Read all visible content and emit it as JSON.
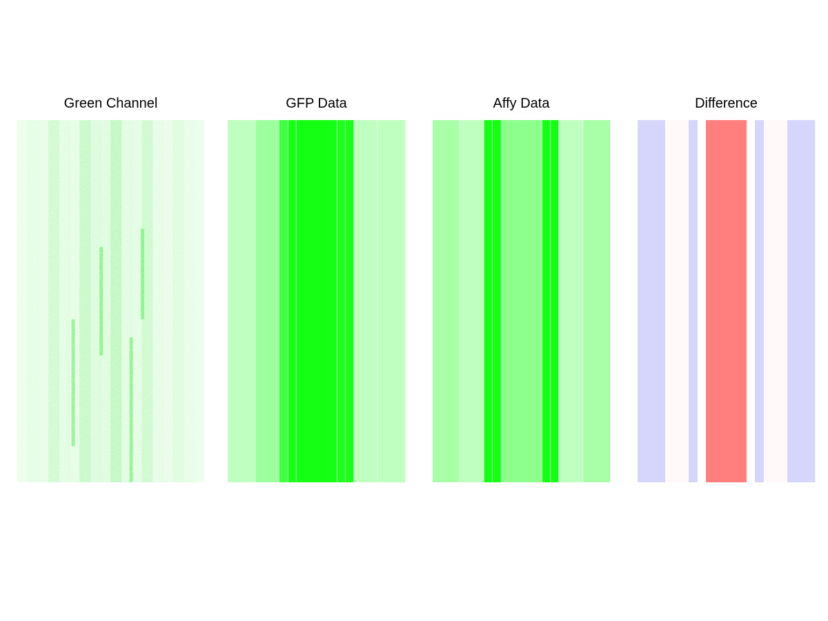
{
  "chart_data": [
    {
      "type": "heatmap",
      "title": "Green Channel",
      "kind": "microscopy-image",
      "color": "#00e000",
      "column_intensity": [
        0.08,
        0.12,
        0.1,
        0.28,
        0.14,
        0.12,
        0.35,
        0.2,
        0.18,
        0.4,
        0.15,
        0.14,
        0.3,
        0.12,
        0.1,
        0.18,
        0.1,
        0.08
      ]
    },
    {
      "type": "heatmap",
      "title": "GFP Data",
      "kind": "striped",
      "base_color": "#00ff00",
      "stripes": [
        {
          "width": 40,
          "level": 0.25
        },
        {
          "width": 34,
          "level": 0.38
        },
        {
          "width": 13,
          "level": 0.75
        },
        {
          "width": 12,
          "level": 0.9
        },
        {
          "width": 59,
          "level": 0.92
        },
        {
          "width": 12,
          "level": 0.88
        },
        {
          "width": 12,
          "level": 0.9
        },
        {
          "width": 34,
          "level": 0.25
        },
        {
          "width": 40,
          "level": 0.25
        }
      ]
    },
    {
      "type": "heatmap",
      "title": "Affy Data",
      "kind": "striped",
      "base_color": "#00ff00",
      "stripes": [
        {
          "width": 39,
          "level": 0.34
        },
        {
          "width": 35,
          "level": 0.25
        },
        {
          "width": 12,
          "level": 0.92
        },
        {
          "width": 13,
          "level": 0.92
        },
        {
          "width": 59,
          "level": 0.45
        },
        {
          "width": 12,
          "level": 0.92
        },
        {
          "width": 12,
          "level": 0.92
        },
        {
          "width": 35,
          "level": 0.25
        },
        {
          "width": 39,
          "level": 0.34
        }
      ]
    },
    {
      "type": "heatmap",
      "title": "Difference",
      "kind": "striped-diverging",
      "positive_color": "#ff7f7f",
      "negative_color": "#d6d6fc",
      "stripes": [
        {
          "width": 40,
          "value": -1
        },
        {
          "width": 34,
          "value": 0.05
        },
        {
          "width": 13,
          "value": -1
        },
        {
          "width": 12,
          "value": 0
        },
        {
          "width": 59,
          "value": 1
        },
        {
          "width": 12,
          "value": 0
        },
        {
          "width": 13,
          "value": -1
        },
        {
          "width": 34,
          "value": 0.05
        },
        {
          "width": 40,
          "value": -1
        }
      ]
    }
  ]
}
